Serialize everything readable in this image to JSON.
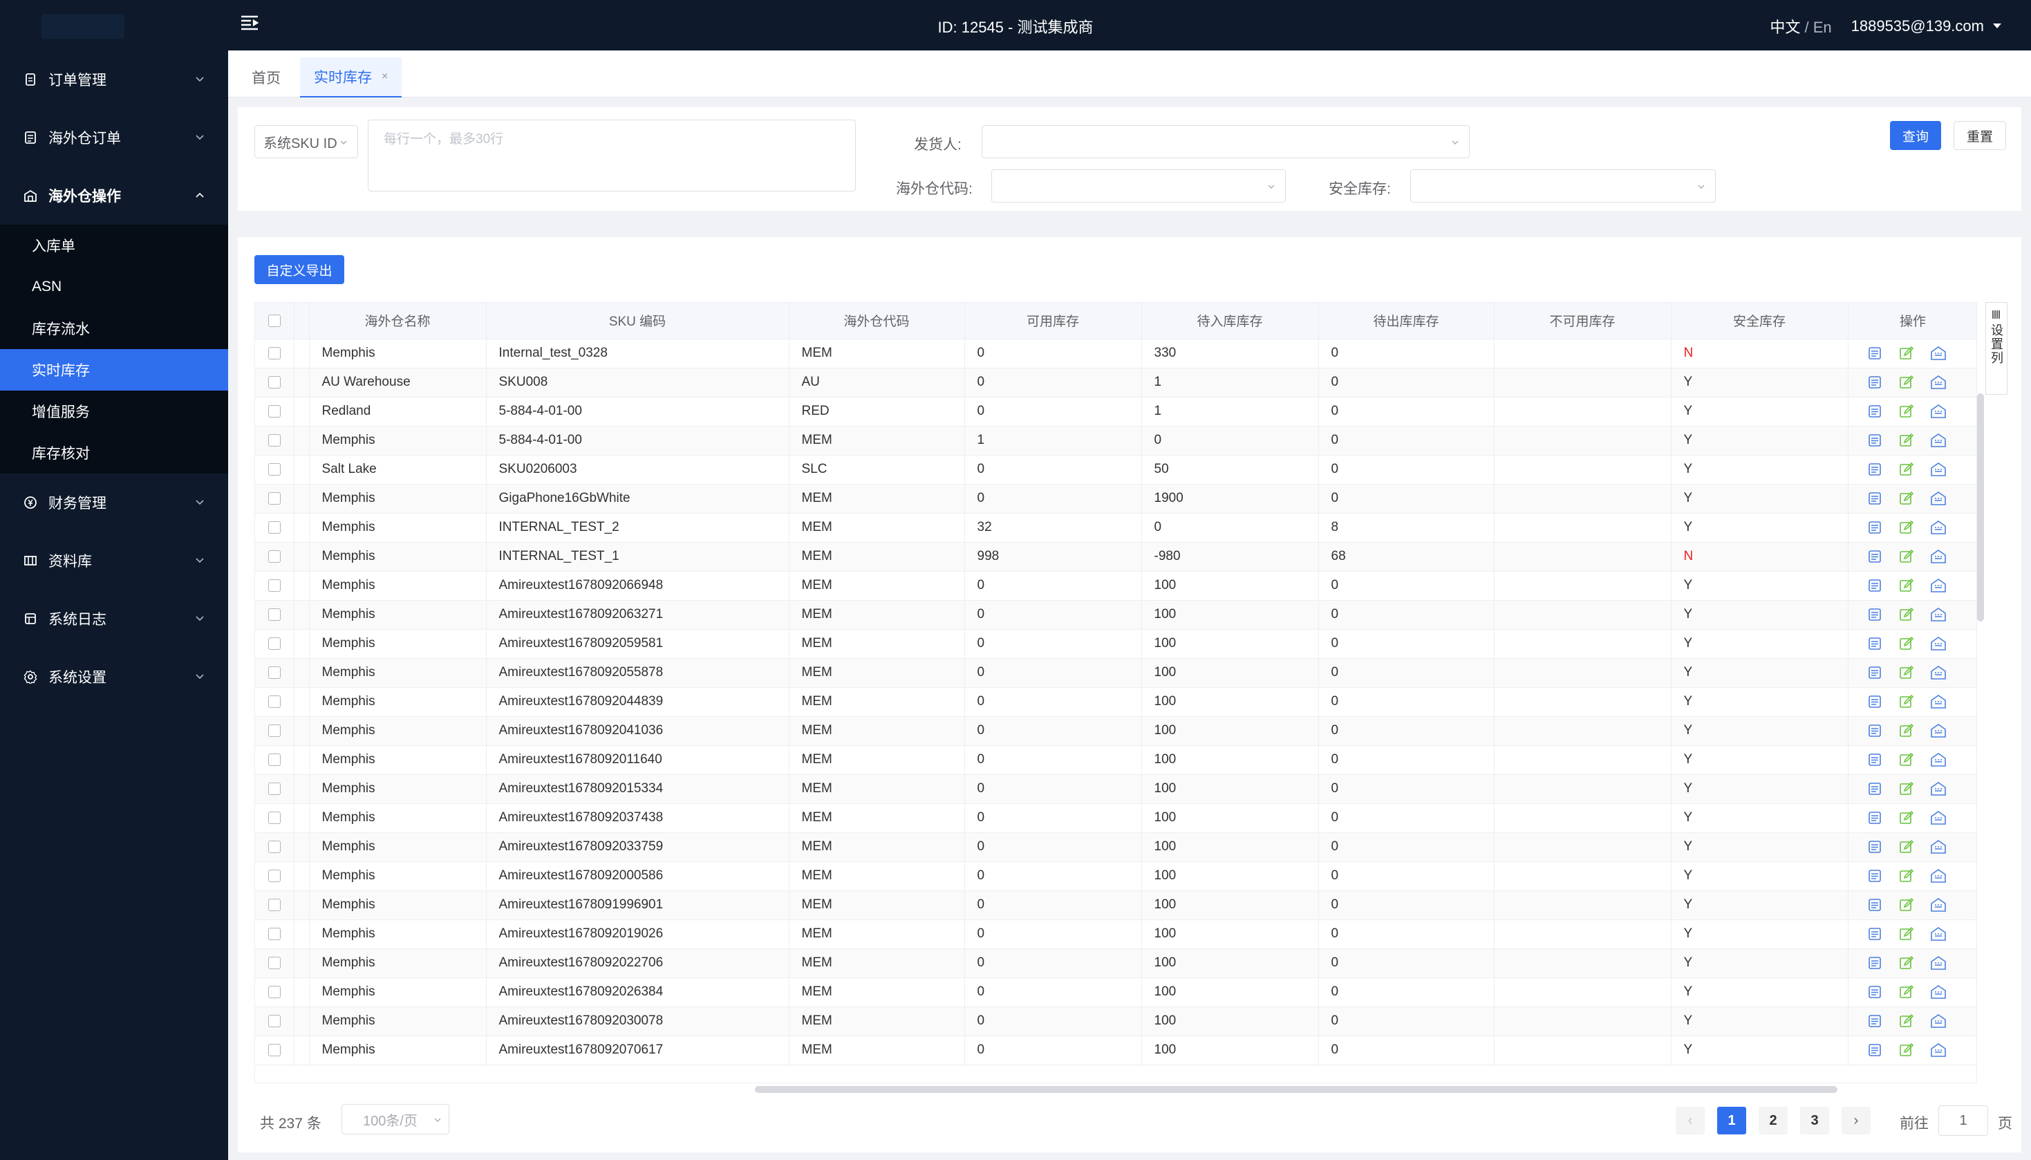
{
  "header": {
    "title": "ID: 12545 - 测试集成商",
    "lang_zh": "中文",
    "lang_sep": "/",
    "lang_en": "En",
    "user": "1889535@139.com"
  },
  "sidebar": {
    "items": [
      {
        "label": "订单管理",
        "icon": "order-icon"
      },
      {
        "label": "海外仓订单",
        "icon": "overseas-order-icon"
      },
      {
        "label": "海外仓操作",
        "icon": "warehouse-ops-icon"
      },
      {
        "label": "财务管理",
        "icon": "finance-icon"
      },
      {
        "label": "资料库",
        "icon": "database-icon"
      },
      {
        "label": "系统日志",
        "icon": "log-icon"
      },
      {
        "label": "系统设置",
        "icon": "settings-icon"
      }
    ],
    "submenu": [
      "入库单",
      "ASN",
      "库存流水",
      "实时库存",
      "增值服务",
      "库存核对"
    ]
  },
  "tabs": {
    "home": "首页",
    "current": "实时库存",
    "close": "×"
  },
  "filters": {
    "sku_type": "系统SKU ID",
    "sku_placeholder": "每行一个，最多30行",
    "shipper_label": "发货人:",
    "wh_code_label": "海外仓代码:",
    "safety_label": "安全库存:",
    "query": "查询",
    "reset": "重置"
  },
  "export_button": "自定义导出",
  "column_settings": "设置列",
  "table": {
    "headers": [
      "海外仓名称",
      "SKU 编码",
      "海外仓代码",
      "可用库存",
      "待入库库存",
      "待出库库存",
      "不可用库存",
      "安全库存",
      "操作"
    ],
    "rows": [
      [
        "Memphis",
        "Internal_test_0328",
        "MEM",
        "0",
        "330",
        "0",
        "",
        "N"
      ],
      [
        "AU Warehouse",
        "SKU008",
        "AU",
        "0",
        "1",
        "0",
        "",
        "Y"
      ],
      [
        "Redland",
        "5-884-4-01-00",
        "RED",
        "0",
        "1",
        "0",
        "",
        "Y"
      ],
      [
        "Memphis",
        "5-884-4-01-00",
        "MEM",
        "1",
        "0",
        "0",
        "",
        "Y"
      ],
      [
        "Salt Lake",
        "SKU0206003",
        "SLC",
        "0",
        "50",
        "0",
        "",
        "Y"
      ],
      [
        "Memphis",
        "GigaPhone16GbWhite",
        "MEM",
        "0",
        "1900",
        "0",
        "",
        "Y"
      ],
      [
        "Memphis",
        "INTERNAL_TEST_2",
        "MEM",
        "32",
        "0",
        "8",
        "",
        "Y"
      ],
      [
        "Memphis",
        "INTERNAL_TEST_1",
        "MEM",
        "998",
        "-980",
        "68",
        "",
        "N"
      ],
      [
        "Memphis",
        "Amireuxtest1678092066948",
        "MEM",
        "0",
        "100",
        "0",
        "",
        "Y"
      ],
      [
        "Memphis",
        "Amireuxtest1678092063271",
        "MEM",
        "0",
        "100",
        "0",
        "",
        "Y"
      ],
      [
        "Memphis",
        "Amireuxtest1678092059581",
        "MEM",
        "0",
        "100",
        "0",
        "",
        "Y"
      ],
      [
        "Memphis",
        "Amireuxtest1678092055878",
        "MEM",
        "0",
        "100",
        "0",
        "",
        "Y"
      ],
      [
        "Memphis",
        "Amireuxtest1678092044839",
        "MEM",
        "0",
        "100",
        "0",
        "",
        "Y"
      ],
      [
        "Memphis",
        "Amireuxtest1678092041036",
        "MEM",
        "0",
        "100",
        "0",
        "",
        "Y"
      ],
      [
        "Memphis",
        "Amireuxtest1678092011640",
        "MEM",
        "0",
        "100",
        "0",
        "",
        "Y"
      ],
      [
        "Memphis",
        "Amireuxtest1678092015334",
        "MEM",
        "0",
        "100",
        "0",
        "",
        "Y"
      ],
      [
        "Memphis",
        "Amireuxtest1678092037438",
        "MEM",
        "0",
        "100",
        "0",
        "",
        "Y"
      ],
      [
        "Memphis",
        "Amireuxtest1678092033759",
        "MEM",
        "0",
        "100",
        "0",
        "",
        "Y"
      ],
      [
        "Memphis",
        "Amireuxtest1678092000586",
        "MEM",
        "0",
        "100",
        "0",
        "",
        "Y"
      ],
      [
        "Memphis",
        "Amireuxtest1678091996901",
        "MEM",
        "0",
        "100",
        "0",
        "",
        "Y"
      ],
      [
        "Memphis",
        "Amireuxtest1678092019026",
        "MEM",
        "0",
        "100",
        "0",
        "",
        "Y"
      ],
      [
        "Memphis",
        "Amireuxtest1678092022706",
        "MEM",
        "0",
        "100",
        "0",
        "",
        "Y"
      ],
      [
        "Memphis",
        "Amireuxtest1678092026384",
        "MEM",
        "0",
        "100",
        "0",
        "",
        "Y"
      ],
      [
        "Memphis",
        "Amireuxtest1678092030078",
        "MEM",
        "0",
        "100",
        "0",
        "",
        "Y"
      ],
      [
        "Memphis",
        "Amireuxtest1678092070617",
        "MEM",
        "0",
        "100",
        "0",
        "",
        "Y"
      ]
    ]
  },
  "pagination": {
    "total": "共 237 条",
    "page_size": "100条/页",
    "pages": [
      "1",
      "2",
      "3"
    ],
    "current": "1",
    "prev": "‹",
    "next": "›",
    "goto_label": "前往",
    "goto_value": "1",
    "goto_suffix": "页"
  },
  "colors": {
    "primary": "#2f6fed",
    "nav_bg": "#0e1a2b",
    "danger": "#f01d1d",
    "ok_icon": "#67c23a"
  }
}
